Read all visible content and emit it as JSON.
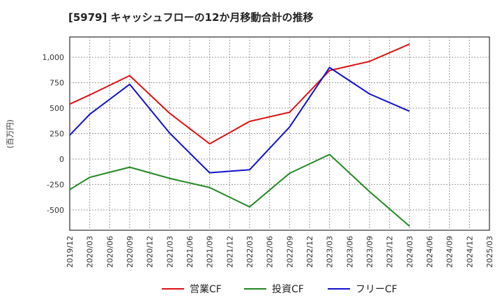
{
  "chart_data": {
    "type": "line",
    "title": "[5979]  キャッシュフローの12か月移動合計の推移",
    "ylabel": "(百万円)",
    "xlabel": "",
    "ylim": [
      -700,
      1200
    ],
    "y_ticks": [
      1000,
      750,
      500,
      250,
      0,
      -250,
      -500
    ],
    "y_tick_labels": [
      "1,000",
      "750",
      "500",
      "250",
      "0",
      "-250",
      "-500"
    ],
    "categories": [
      "2019/12",
      "2020/03",
      "2020/06",
      "2020/09",
      "2020/12",
      "2021/03",
      "2021/06",
      "2021/09",
      "2021/12",
      "2022/03",
      "2022/06",
      "2022/09",
      "2022/12",
      "2023/03",
      "2023/06",
      "2023/09",
      "2023/12",
      "2024/03",
      "2024/06",
      "2024/09",
      "2024/12",
      "2025/03"
    ],
    "grid": true,
    "legend_position": "bottom",
    "series": [
      {
        "name": "営業CF",
        "color": "#dd1111",
        "values": [
          540,
          630,
          null,
          820,
          null,
          450,
          null,
          150,
          null,
          370,
          null,
          460,
          null,
          870,
          null,
          960,
          null,
          1130,
          null,
          null,
          null,
          null
        ]
      },
      {
        "name": "投資CF",
        "color": "#228822",
        "values": [
          -300,
          -180,
          null,
          -80,
          null,
          -190,
          null,
          -280,
          null,
          -470,
          null,
          -140,
          null,
          45,
          null,
          -320,
          null,
          -660,
          null,
          null,
          null,
          null
        ]
      },
      {
        "name": "フリーCF",
        "color": "#1111cc",
        "values": [
          235,
          440,
          null,
          735,
          null,
          255,
          null,
          -135,
          null,
          -105,
          null,
          315,
          null,
          900,
          null,
          640,
          null,
          470,
          null,
          null,
          null,
          null
        ]
      }
    ]
  }
}
